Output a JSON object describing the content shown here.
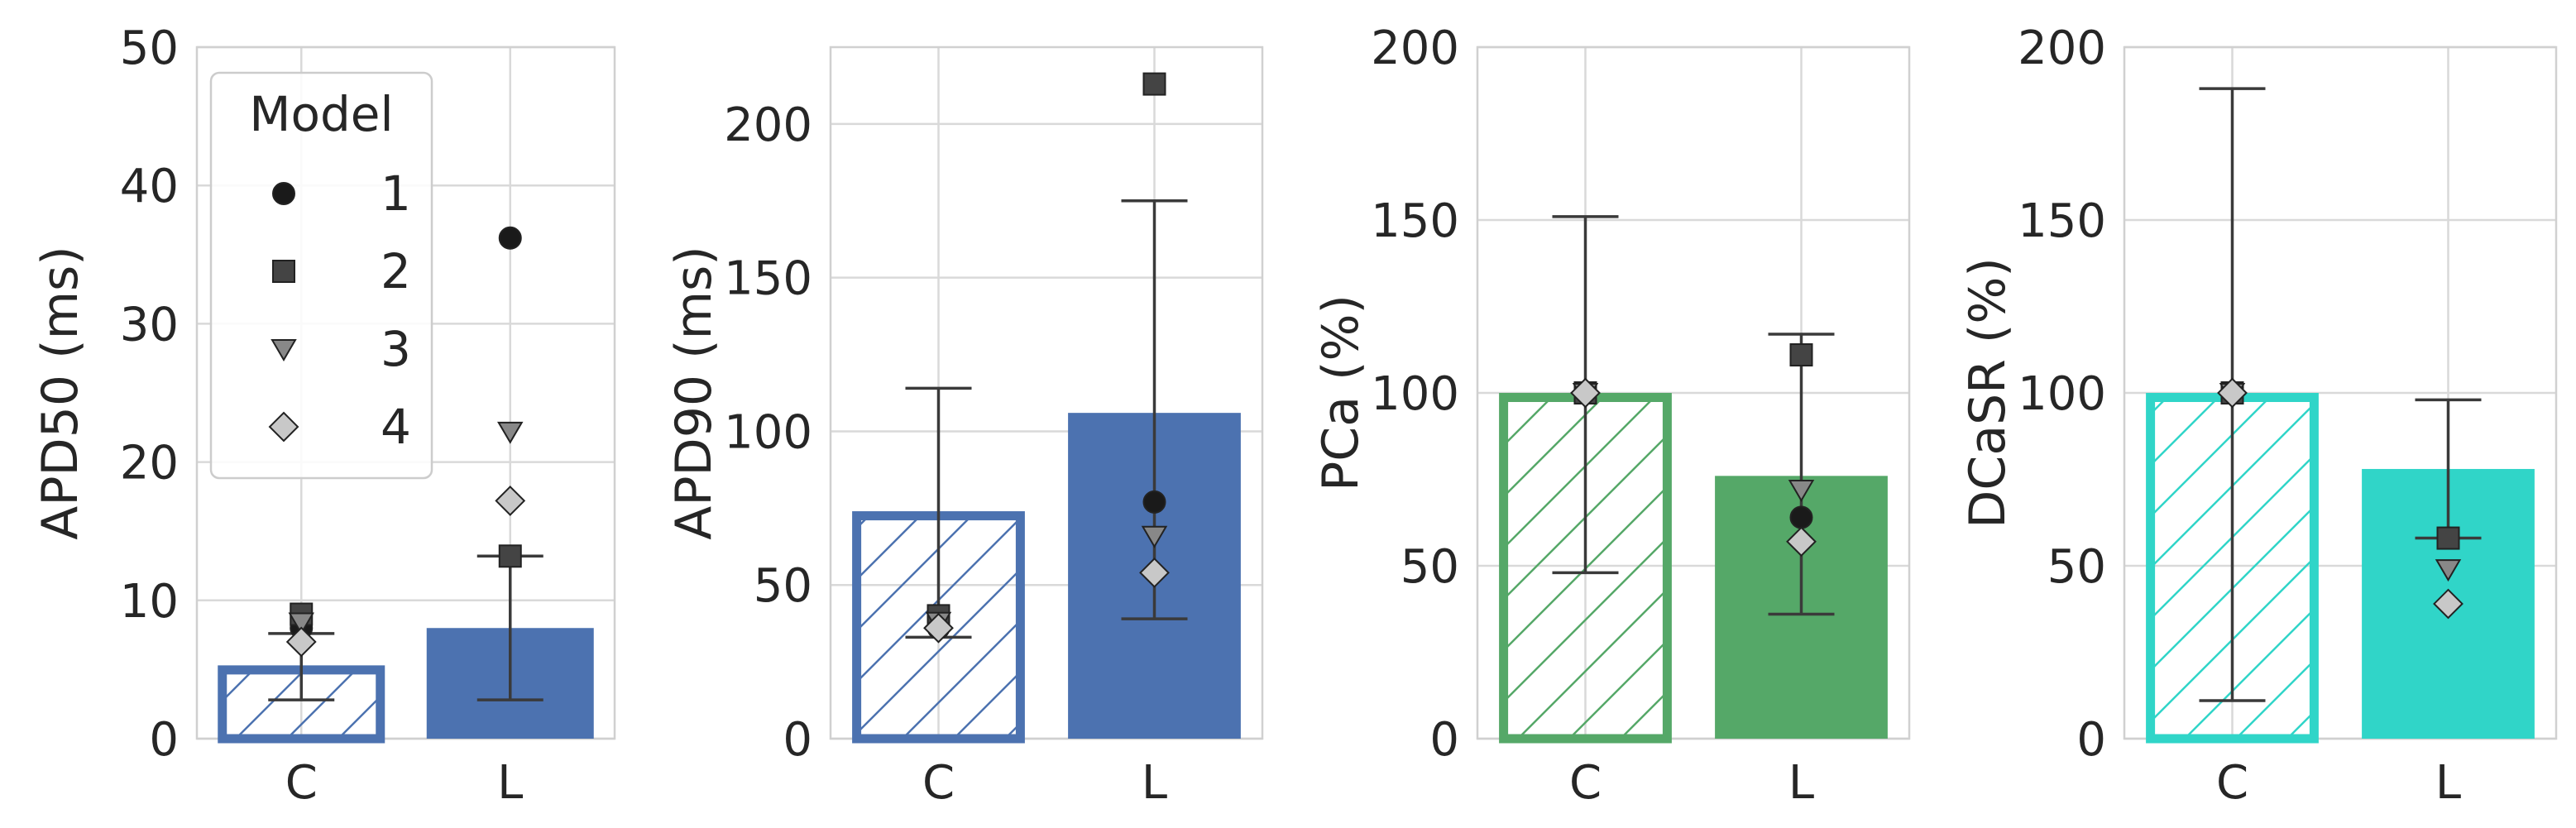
{
  "legend": {
    "title": "Model",
    "entries": [
      {
        "label": "1",
        "marker": "circle",
        "color": "#1a1a1a"
      },
      {
        "label": "2",
        "marker": "square",
        "color": "#444444"
      },
      {
        "label": "3",
        "marker": "triangle-down",
        "color": "#888888"
      },
      {
        "label": "4",
        "marker": "diamond",
        "color": "#c8c8c8"
      }
    ]
  },
  "chart_data": [
    {
      "type": "bar",
      "ylabel": "APD50 (ms)",
      "ylim": [
        0,
        50
      ],
      "yticks": [
        "0",
        "10",
        "20",
        "30",
        "40",
        "50"
      ],
      "yticks_values": [
        0,
        10,
        20,
        30,
        40,
        50
      ],
      "color": "#4c72b0",
      "categories": [
        "C",
        "L"
      ],
      "bars": [
        {
          "category": "C",
          "value": 5.3,
          "err_low": 2.8,
          "err_high": 7.6,
          "hatched": true
        },
        {
          "category": "L",
          "value": 8.0,
          "err_low": 2.8,
          "err_high": 13.2,
          "hatched": false
        }
      ],
      "points": {
        "C": {
          "1": 8.0,
          "2": 9.0,
          "3": 8.4,
          "4": 7.0
        },
        "L": {
          "1": 36.2,
          "2": 13.2,
          "3": 22.2,
          "4": 17.2
        }
      },
      "legend": true
    },
    {
      "type": "bar",
      "ylabel": "APD90 (ms)",
      "ylim": [
        0,
        225
      ],
      "yticks": [
        "0",
        "50",
        "100",
        "150",
        "200"
      ],
      "yticks_values": [
        0,
        50,
        100,
        150,
        200
      ],
      "color": "#4c72b0",
      "categories": [
        "C",
        "L"
      ],
      "bars": [
        {
          "category": "C",
          "value": 74,
          "err_low": 33,
          "err_high": 114,
          "hatched": true
        },
        {
          "category": "L",
          "value": 106,
          "err_low": 39,
          "err_high": 175,
          "hatched": false
        }
      ],
      "points": {
        "C": {
          "1": 36,
          "2": 40,
          "3": 38,
          "4": 36
        },
        "L": {
          "1": 77,
          "2": 213,
          "3": 66,
          "4": 54
        }
      },
      "legend": false
    },
    {
      "type": "bar",
      "ylabel": "PCa (%)",
      "ylim": [
        0,
        200
      ],
      "yticks": [
        "0",
        "50",
        "100",
        "150",
        "200"
      ],
      "yticks_values": [
        0,
        50,
        100,
        150,
        200
      ],
      "color": "#55a868",
      "categories": [
        "C",
        "L"
      ],
      "bars": [
        {
          "category": "C",
          "value": 100,
          "err_low": 48,
          "err_high": 151,
          "hatched": true
        },
        {
          "category": "L",
          "value": 76,
          "err_low": 36,
          "err_high": 117,
          "hatched": false
        }
      ],
      "points": {
        "C": {
          "1": 100,
          "2": 100,
          "3": 100,
          "4": 100
        },
        "L": {
          "1": 64,
          "2": 111,
          "3": 72,
          "4": 57
        }
      },
      "legend": false
    },
    {
      "type": "bar",
      "ylabel": "DCaSR (%)",
      "ylim": [
        0,
        200
      ],
      "yticks": [
        "0",
        "50",
        "100",
        "150",
        "200"
      ],
      "yticks_values": [
        0,
        50,
        100,
        150,
        200
      ],
      "color": "#30d5c8",
      "categories": [
        "C",
        "L"
      ],
      "bars": [
        {
          "category": "C",
          "value": 100,
          "err_low": 11,
          "err_high": 188,
          "hatched": true
        },
        {
          "category": "L",
          "value": 78,
          "err_low": 58,
          "err_high": 98,
          "hatched": false
        }
      ],
      "points": {
        "C": {
          "1": 100,
          "2": 100,
          "3": 100,
          "4": 100
        },
        "L": {
          "1": 58,
          "2": 58,
          "3": 49,
          "4": 39
        }
      },
      "legend": false
    }
  ]
}
